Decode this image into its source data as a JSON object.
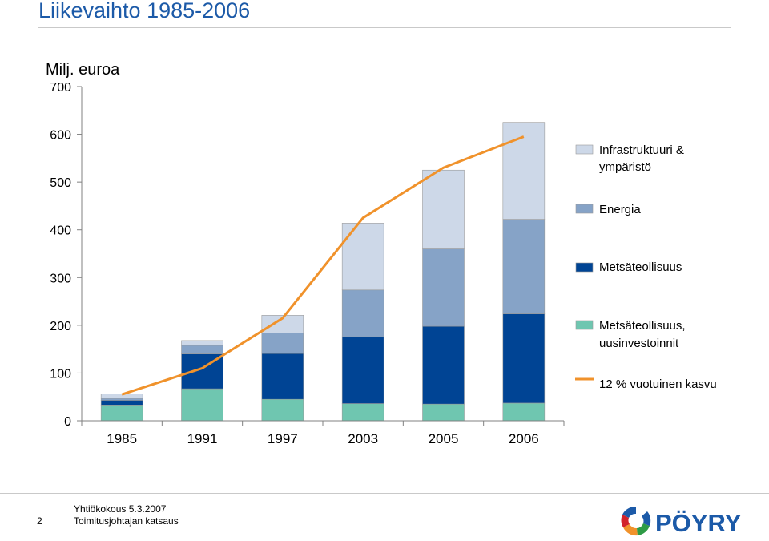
{
  "slide": {
    "title": "Liikevaihto 1985-2006",
    "page_number": "2",
    "footer_line1": "Yhtiökokous 5.3.2007",
    "footer_line2": "Toimitusjohtajan katsaus",
    "logo_text": "PÖYRY"
  },
  "chart_data": {
    "type": "bar",
    "stacked": true,
    "ylabel": "Milj. euroa",
    "ylim": [
      0,
      700
    ],
    "yticks": [
      0,
      100,
      200,
      300,
      400,
      500,
      600,
      700
    ],
    "categories": [
      "1985",
      "1991",
      "1997",
      "2003",
      "2005",
      "2006"
    ],
    "series": [
      {
        "name": "Metsäteollisuus, uusinvestoinnit",
        "color": "#6fc6b0",
        "values": [
          33,
          67,
          45,
          36,
          35,
          37
        ]
      },
      {
        "name": "Metsäteollisuus",
        "color": "#004494",
        "values": [
          10,
          73,
          96,
          140,
          163,
          187
        ]
      },
      {
        "name": "Energia",
        "color": "#86a3c7",
        "values": [
          4,
          18,
          43,
          98,
          162,
          198
        ]
      },
      {
        "name": "Infrastruktuuri & ympäristö",
        "color": "#cdd8e8",
        "values": [
          9,
          10,
          37,
          140,
          165,
          203
        ]
      }
    ],
    "line": {
      "name": "12 % vuotuinen kasvu",
      "color": "#f0922b",
      "values": [
        55,
        110,
        215,
        425,
        530,
        595
      ]
    },
    "legend_order": [
      "Infrastruktuuri & ympäristö",
      "Energia",
      "Metsäteollisuus",
      "Metsäteollisuus, uusinvestoinnit",
      "12 % vuotuinen kasvu"
    ],
    "legend_position": "right",
    "grid": false
  }
}
